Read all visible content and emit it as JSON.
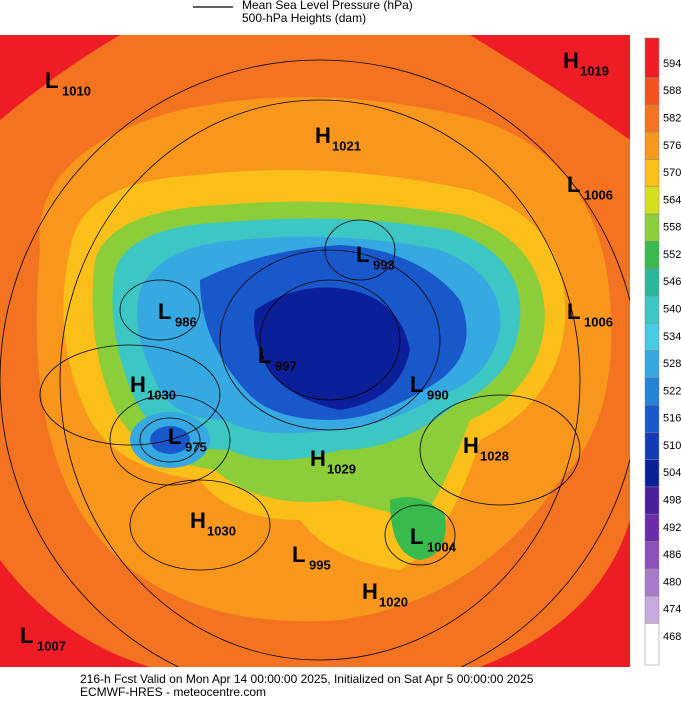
{
  "legend": {
    "lines": [
      "Mean Sea Level Pressure (hPa)",
      "500-hPa Heights (dam)"
    ]
  },
  "colorbar": [
    {
      "value": 594,
      "color": "#ee1c25"
    },
    {
      "value": 588,
      "color": "#f4511f"
    },
    {
      "value": 582,
      "color": "#f47320"
    },
    {
      "value": 576,
      "color": "#f8971c"
    },
    {
      "value": 570,
      "color": "#fbbf1a"
    },
    {
      "value": 564,
      "color": "#d5e01c"
    },
    {
      "value": 558,
      "color": "#8ccd3a"
    },
    {
      "value": 552,
      "color": "#39ba4c"
    },
    {
      "value": 546,
      "color": "#2ab89a"
    },
    {
      "value": 540,
      "color": "#3cc6c4"
    },
    {
      "value": 534,
      "color": "#45cbe6"
    },
    {
      "value": 528,
      "color": "#36a8e2"
    },
    {
      "value": 522,
      "color": "#2182d8"
    },
    {
      "value": 516,
      "color": "#1858ca"
    },
    {
      "value": 510,
      "color": "#123ab8"
    },
    {
      "value": 504,
      "color": "#0c1f9a"
    },
    {
      "value": 498,
      "color": "#4b1fa0"
    },
    {
      "value": 492,
      "color": "#6a2ca8"
    },
    {
      "value": 486,
      "color": "#8b50b9"
    },
    {
      "value": 480,
      "color": "#a87bc9"
    },
    {
      "value": 474,
      "color": "#c8abdd"
    },
    {
      "value": 468,
      "color": "#ffffff"
    }
  ],
  "centers": [
    {
      "letter": "L",
      "value": 1010
    },
    {
      "letter": "H",
      "value": 1019
    },
    {
      "letter": "H",
      "value": 1021
    },
    {
      "letter": "L",
      "value": 1006
    },
    {
      "letter": "L",
      "value": 993
    },
    {
      "letter": "L",
      "value": 986
    },
    {
      "letter": "L",
      "value": 1006
    },
    {
      "letter": "L",
      "value": 997
    },
    {
      "letter": "H",
      "value": 1030
    },
    {
      "letter": "L",
      "value": 990
    },
    {
      "letter": "L",
      "value": 975
    },
    {
      "letter": "H",
      "value": 1028
    },
    {
      "letter": "H",
      "value": 1029
    },
    {
      "letter": "H",
      "value": 1030
    },
    {
      "letter": "L",
      "value": 1004
    },
    {
      "letter": "L",
      "value": 995
    },
    {
      "letter": "H",
      "value": 1020
    },
    {
      "letter": "L",
      "value": 1007
    }
  ],
  "footer": {
    "lines": [
      "216-h Fcst Valid on Mon Apr 14 00:00:00 2025, Initialized on Sat Apr  5 00:00:00 2025",
      "ECMWF-HRES  - meteocentre.com"
    ]
  }
}
